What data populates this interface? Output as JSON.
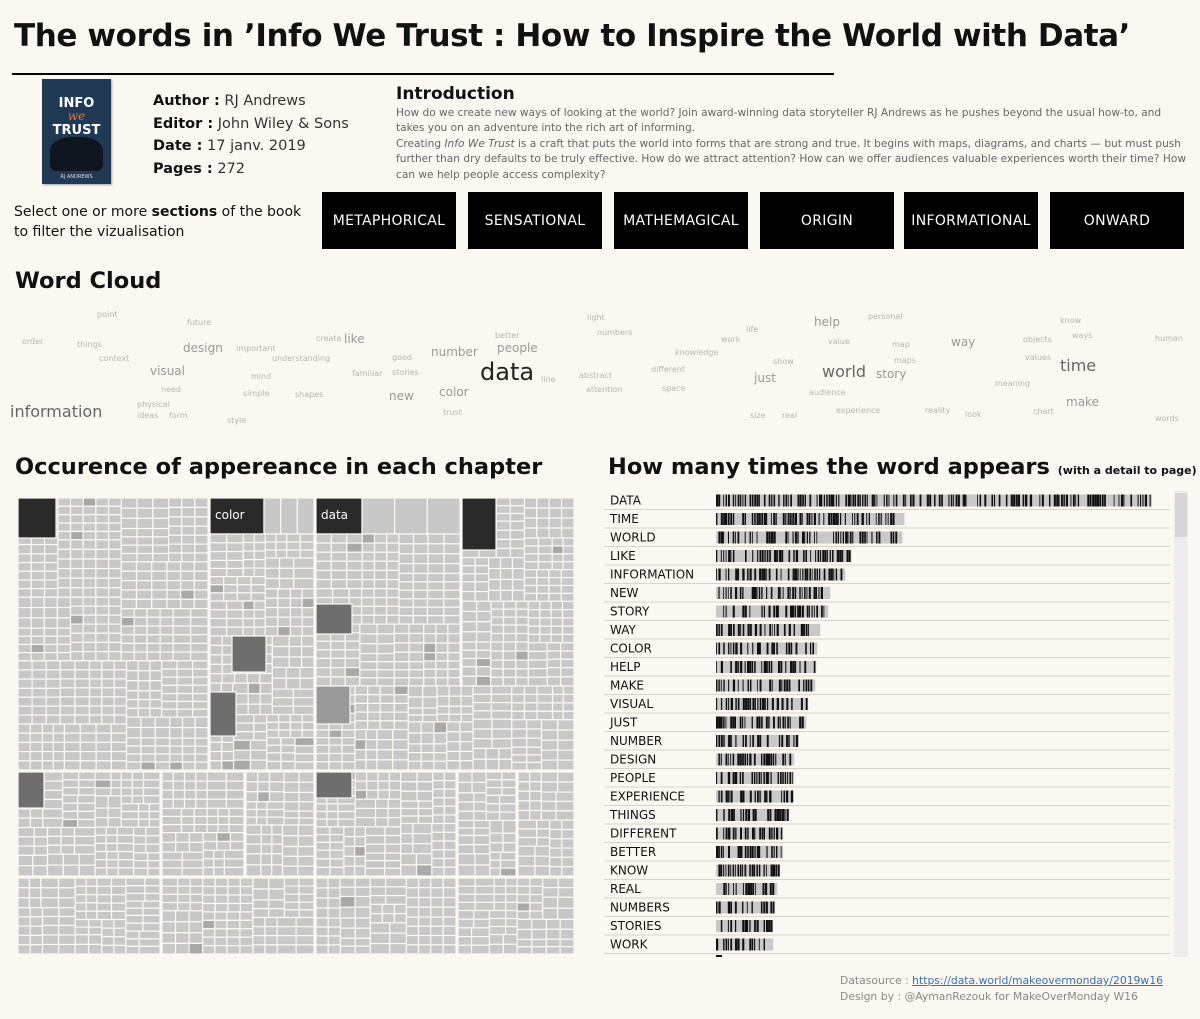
{
  "title": "The words in ’Info We Trust : How to Inspire the World with Data’",
  "book": {
    "cover": {
      "line1": "INFO",
      "line2": "we",
      "line3": "TRUST",
      "author_line": "RJ ANDREWS"
    },
    "author_label": "Author :",
    "author": "RJ Andrews",
    "editor_label": "Editor :",
    "editor": "John Wiley & Sons",
    "date_label": "Date :",
    "date": "17 janv. 2019",
    "pages_label": "Pages :",
    "pages": "272"
  },
  "intro": {
    "heading": "Introduction",
    "p1": "How do we create new ways of looking at the world? Join award-winning data storyteller RJ Andrews as he pushes beyond the usual how-to, and takes you on an adventure into the rich art of informing.",
    "p2_pre": "Creating ",
    "p2_em": "Info We Trust",
    "p2_post": "  is a craft that puts the world into forms that are strong and true. It begins with maps, diagrams, and charts — but must push further than dry defaults to be truly effective. How do we attract attention? How can we offer audiences valuable experiences worth their time? How can we help people access complexity?"
  },
  "filter": {
    "pre": "Select one or more ",
    "bold": "sections",
    "post": " of the book to filter the vizualisation"
  },
  "sections": [
    "METAPHORICAL",
    "SENSATIONAL",
    "MATHEMAGICAL",
    "ORIGIN",
    "INFORMATIONAL",
    "ONWARD"
  ],
  "word_cloud_title": "Word Cloud",
  "occurrence_title": "Occurence of appereance in each chapter",
  "freq_title": "How many times the word appears",
  "freq_subtitle": "(with a detail to page)",
  "freq_q": "?",
  "footer": {
    "source_label": "Datasource : ",
    "source_link": "https://data.world/makeovermonday/2019w16",
    "credit": "Design by : @AymanRezouk for MakeOverMonday W16"
  },
  "colors": {
    "background": "#fbf8f1",
    "button": "#000000",
    "cell": "#c8c8c8",
    "cell_dark": "#2a2a2a",
    "cell_mid": "#6e6e6e",
    "bar_dark": "#111111",
    "bar_light": "#c9c9c9"
  },
  "chart_data": [
    {
      "type": "wordcloud",
      "title": "Word Cloud",
      "words": [
        {
          "text": "data",
          "size": 5
        },
        {
          "text": "time",
          "size": 3
        },
        {
          "text": "world",
          "size": 3
        },
        {
          "text": "information",
          "size": 3
        },
        {
          "text": "like",
          "size": 2
        },
        {
          "text": "new",
          "size": 2
        },
        {
          "text": "story",
          "size": 2
        },
        {
          "text": "way",
          "size": 2
        },
        {
          "text": "color",
          "size": 2
        },
        {
          "text": "help",
          "size": 2
        },
        {
          "text": "make",
          "size": 2
        },
        {
          "text": "visual",
          "size": 2
        },
        {
          "text": "just",
          "size": 2
        },
        {
          "text": "number",
          "size": 2
        },
        {
          "text": "design",
          "size": 2
        },
        {
          "text": "people",
          "size": 2
        },
        {
          "text": "experience",
          "size": 1
        },
        {
          "text": "things",
          "size": 1
        },
        {
          "text": "different",
          "size": 1
        },
        {
          "text": "better",
          "size": 1
        },
        {
          "text": "know",
          "size": 1
        },
        {
          "text": "real",
          "size": 1
        },
        {
          "text": "numbers",
          "size": 1
        },
        {
          "text": "stories",
          "size": 1
        },
        {
          "text": "work",
          "size": 1
        },
        {
          "text": "meaning",
          "size": 1
        },
        {
          "text": "attention",
          "size": 1
        },
        {
          "text": "value",
          "size": 1
        },
        {
          "text": "knowledge",
          "size": 1
        },
        {
          "text": "good",
          "size": 1
        },
        {
          "text": "reality",
          "size": 1
        },
        {
          "text": "physical",
          "size": 1
        },
        {
          "text": "context",
          "size": 1
        },
        {
          "text": "future",
          "size": 1
        },
        {
          "text": "human",
          "size": 1
        },
        {
          "text": "life",
          "size": 1
        },
        {
          "text": "line",
          "size": 1
        },
        {
          "text": "form",
          "size": 1
        },
        {
          "text": "chart",
          "size": 1
        },
        {
          "text": "map",
          "size": 1
        },
        {
          "text": "order",
          "size": 1
        },
        {
          "text": "point",
          "size": 1
        },
        {
          "text": "objects",
          "size": 1
        },
        {
          "text": "trust",
          "size": 1
        },
        {
          "text": "size",
          "size": 1
        },
        {
          "text": "style",
          "size": 1
        },
        {
          "text": "space",
          "size": 1
        },
        {
          "text": "create",
          "size": 1
        },
        {
          "text": "mind",
          "size": 1
        },
        {
          "text": "audience",
          "size": 1
        },
        {
          "text": "light",
          "size": 1
        },
        {
          "text": "ideas",
          "size": 1
        },
        {
          "text": "need",
          "size": 1
        },
        {
          "text": "words",
          "size": 1
        },
        {
          "text": "maps",
          "size": 1
        },
        {
          "text": "shapes",
          "size": 1
        },
        {
          "text": "values",
          "size": 1
        },
        {
          "text": "understanding",
          "size": 1
        },
        {
          "text": "important",
          "size": 1
        },
        {
          "text": "ways",
          "size": 1
        },
        {
          "text": "abstract",
          "size": 1
        },
        {
          "text": "personal",
          "size": 1
        },
        {
          "text": "familiar",
          "size": 1
        },
        {
          "text": "simple",
          "size": 1
        },
        {
          "text": "show",
          "size": 1
        },
        {
          "text": "look",
          "size": 1
        }
      ]
    },
    {
      "type": "treemap",
      "title": "Occurence of appereance in each chapter",
      "labels": [
        "color",
        "data"
      ]
    },
    {
      "type": "bar",
      "title": "How many times the word appears",
      "categories": [
        "DATA",
        "TIME",
        "WORLD",
        "LIKE",
        "INFORMATION",
        "NEW",
        "STORY",
        "WAY",
        "COLOR",
        "HELP",
        "MAKE",
        "VISUAL",
        "JUST",
        "NUMBER",
        "DESIGN",
        "PEOPLE",
        "EXPERIENCE",
        "THINGS",
        "DIFFERENT",
        "BETTER",
        "KNOW",
        "REAL",
        "NUMBERS",
        "STORIES",
        "WORK"
      ],
      "values": [
        435,
        188,
        186,
        135,
        129,
        114,
        112,
        104,
        101,
        100,
        99,
        92,
        90,
        82,
        78,
        78,
        77,
        73,
        67,
        67,
        64,
        61,
        59,
        57,
        57
      ]
    }
  ]
}
